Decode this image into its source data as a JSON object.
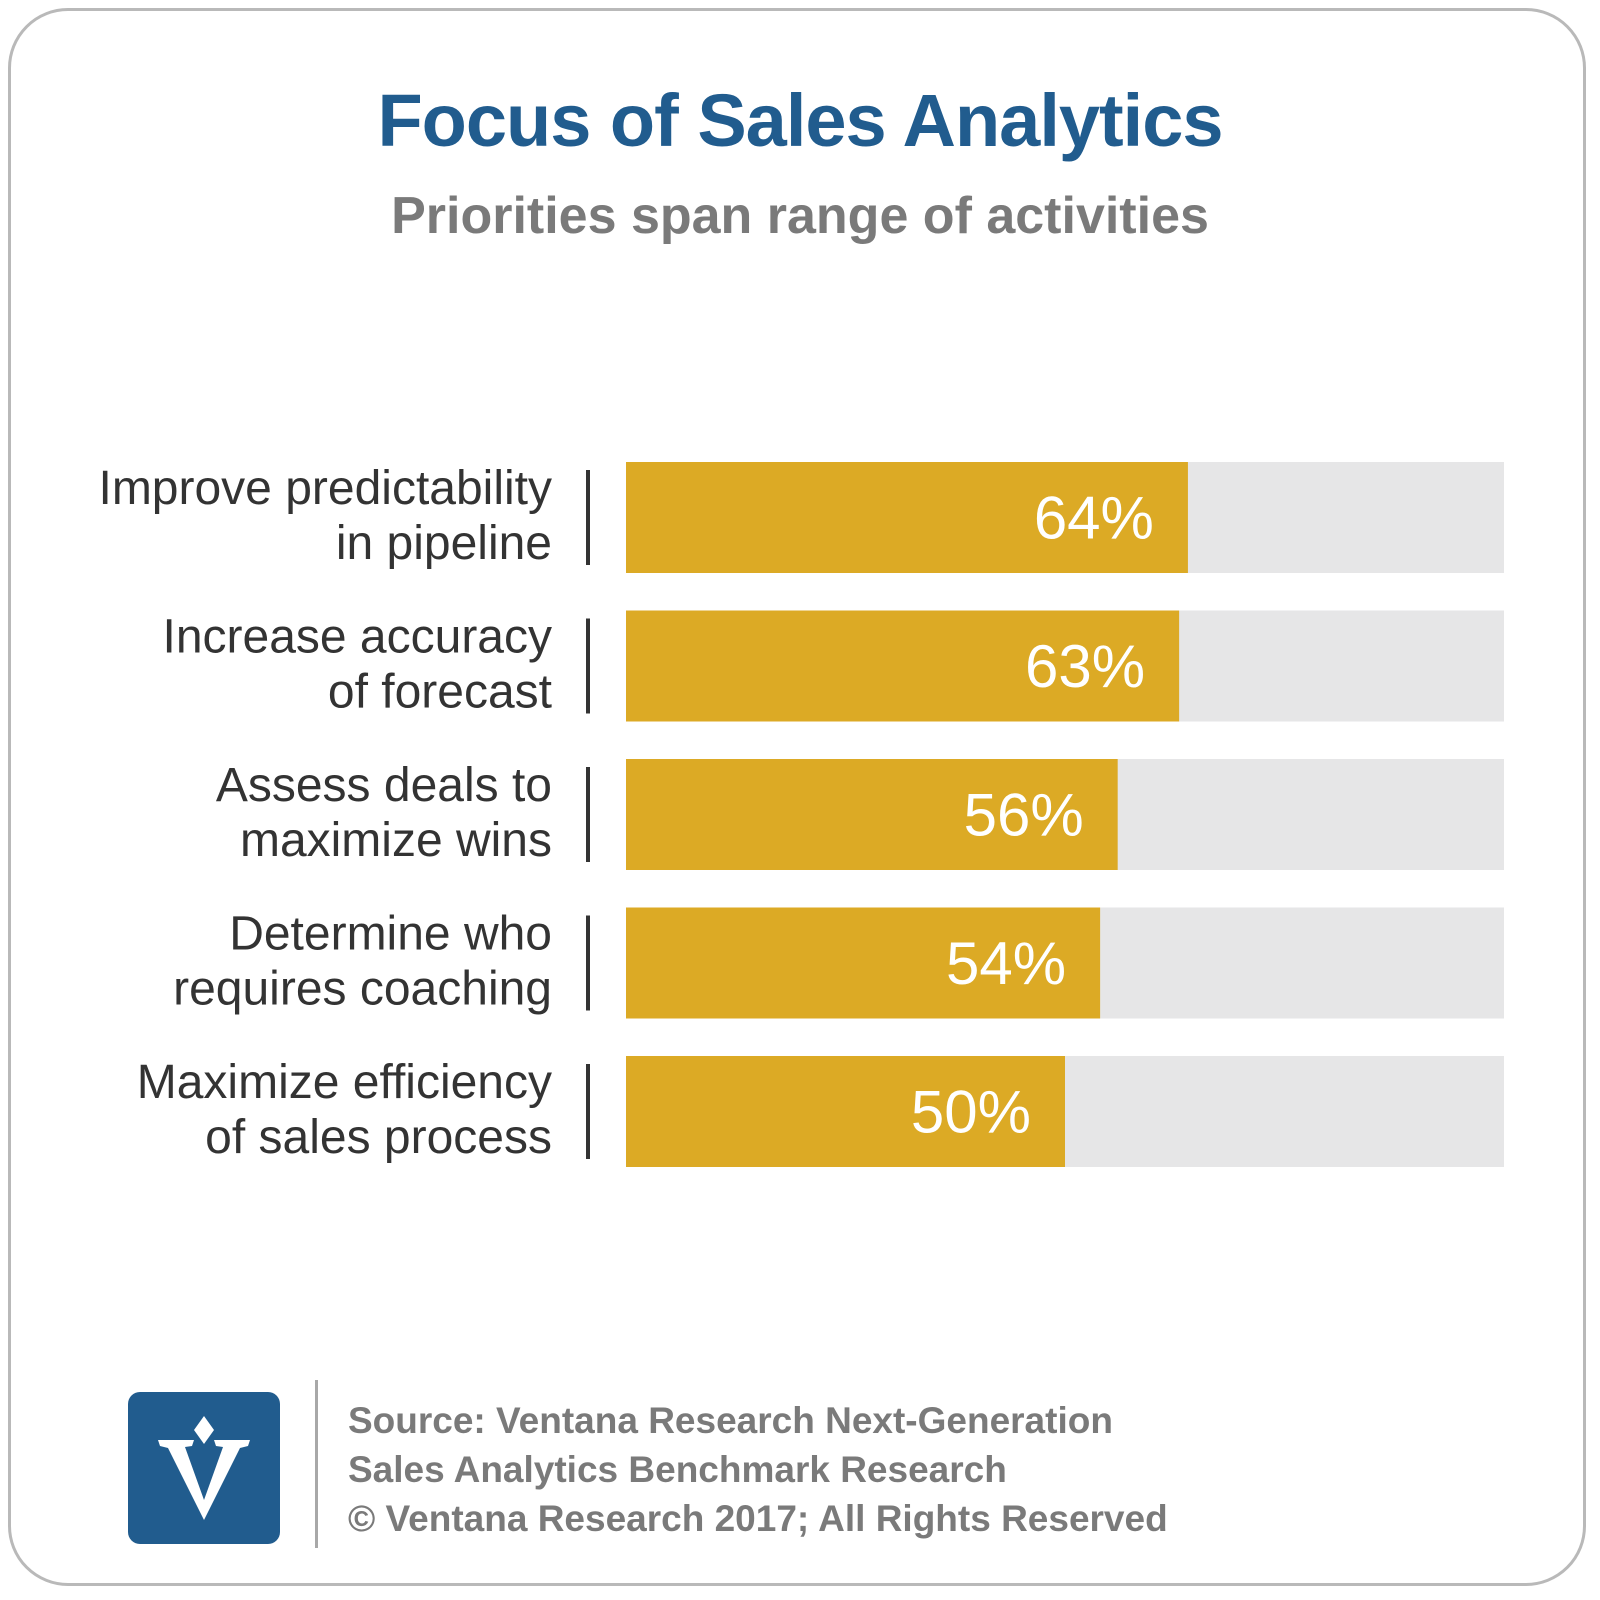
{
  "chart_data": {
    "type": "bar",
    "orientation": "horizontal",
    "title": "Focus of Sales Analytics",
    "subtitle": "Priorities span range of activities",
    "categories": [
      [
        "Improve predictability",
        "in pipeline"
      ],
      [
        "Increase accuracy",
        "of forecast"
      ],
      [
        "Assess deals to",
        "maximize wins"
      ],
      [
        "Determine who",
        "requires coaching"
      ],
      [
        "Maximize efficiency",
        "of sales process"
      ]
    ],
    "values": [
      64,
      63,
      56,
      54,
      50
    ],
    "value_labels": [
      "64%",
      "63%",
      "56%",
      "54%",
      "50%"
    ],
    "xlim": [
      0,
      100
    ],
    "unit": "%",
    "grid": false,
    "legend": "none",
    "colors": {
      "bar": "#dcaa25",
      "track": "#e6e6e7",
      "divider": "#333333"
    }
  },
  "footer": {
    "source_lines": [
      "Source: Ventana Research Next-Generation",
      "Sales Analytics Benchmark Research",
      "© Ventana Research 2017; All Rights Reserved"
    ]
  },
  "logo": {
    "icon": "ventana-v-logo"
  }
}
